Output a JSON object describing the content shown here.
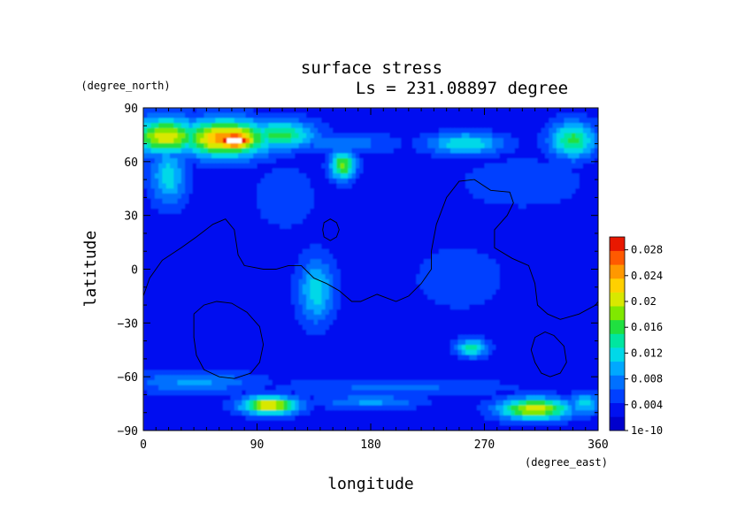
{
  "chart_data": {
    "type": "heatmap",
    "title": "surface stress",
    "subtitle": "Ls = 231.08897 degree",
    "xlabel": "longitude",
    "ylabel": "latitude",
    "x_units": "(degree_east)",
    "y_units": "(degree_north)",
    "xlim": [
      0,
      360
    ],
    "ylim": [
      -90,
      90
    ],
    "x_ticks": [
      "0",
      "90",
      "180",
      "270",
      "360"
    ],
    "y_ticks": [
      "90",
      "60",
      "30",
      "0",
      "−30",
      "−60",
      "−90"
    ],
    "colorbar": {
      "min": 0,
      "max": 0.03,
      "tick_values": [
        0,
        0.004,
        0.008,
        0.012,
        0.016,
        0.02,
        0.024,
        0.028
      ],
      "tick_labels": [
        "1e-10",
        "0.004",
        "0.008",
        "0.012",
        "0.016",
        "0.02",
        "0.024",
        "0.028"
      ],
      "colors": [
        "#0000cd",
        "#0011f0",
        "#0040ff",
        "#0070ff",
        "#00a8ff",
        "#00d8e8",
        "#00e6a0",
        "#20e040",
        "#80e800",
        "#d8e800",
        "#ffd000",
        "#ff9800",
        "#ff5a00",
        "#e81800"
      ]
    },
    "background_value": 0.003,
    "features": [
      {
        "name": "north-polar-band-west",
        "lon": 18,
        "lat": 74,
        "rlon": 28,
        "rlat": 10,
        "value": 0.021
      },
      {
        "name": "north-polar-band-center",
        "lon": 65,
        "lat": 73,
        "rlon": 35,
        "rlat": 10,
        "value": 0.025
      },
      {
        "name": "north-polar-band-east",
        "lon": 108,
        "lat": 75,
        "rlon": 28,
        "rlat": 8,
        "value": 0.016
      },
      {
        "name": "north-polar-max",
        "lon": 72,
        "lat": 72,
        "rlon": 18,
        "rlat": 5,
        "value": 0.034
      },
      {
        "name": "north-mid-lon20",
        "lon": 20,
        "lat": 52,
        "rlon": 14,
        "rlat": 16,
        "value": 0.012
      },
      {
        "name": "north-165",
        "lon": 158,
        "lat": 70,
        "rlon": 40,
        "rlat": 6,
        "value": 0.008
      },
      {
        "name": "north-260",
        "lon": 255,
        "lat": 70,
        "rlon": 30,
        "rlat": 6,
        "value": 0.013
      },
      {
        "name": "north-345",
        "lon": 340,
        "lat": 72,
        "rlon": 18,
        "rlat": 10,
        "value": 0.016
      },
      {
        "name": "north-patch-155",
        "lon": 158,
        "lat": 58,
        "rlon": 10,
        "rlat": 8,
        "value": 0.018
      },
      {
        "name": "north-cloud-110",
        "lon": 112,
        "lat": 40,
        "rlon": 25,
        "rlat": 18,
        "value": 0.006
      },
      {
        "name": "north-cloud-300",
        "lon": 300,
        "lat": 48,
        "rlon": 50,
        "rlat": 14,
        "value": 0.006
      },
      {
        "name": "tharsis-tongue",
        "lon": 137,
        "lat": -12,
        "rlon": 14,
        "rlat": 18,
        "value": 0.012
      },
      {
        "name": "equator-250",
        "lon": 250,
        "lat": -5,
        "rlon": 50,
        "rlat": 25,
        "value": 0.005
      },
      {
        "name": "south-patch-260",
        "lon": 260,
        "lat": -44,
        "rlon": 12,
        "rlat": 5,
        "value": 0.014
      },
      {
        "name": "south-band-west",
        "lon": 40,
        "lat": -63,
        "rlon": 50,
        "rlat": 6,
        "value": 0.009
      },
      {
        "name": "south-band-east",
        "lon": 200,
        "lat": -66,
        "rlon": 90,
        "rlat": 5,
        "value": 0.007
      },
      {
        "name": "south-low-95",
        "lon": 100,
        "lat": -76,
        "rlon": 22,
        "rlat": 5,
        "value": 0.022
      },
      {
        "name": "south-low-180",
        "lon": 180,
        "lat": -74,
        "rlon": 40,
        "rlat": 4,
        "value": 0.009
      },
      {
        "name": "south-low-310",
        "lon": 310,
        "lat": -78,
        "rlon": 28,
        "rlat": 6,
        "value": 0.021
      },
      {
        "name": "south-low-350",
        "lon": 350,
        "lat": -75,
        "rlon": 12,
        "rlat": 6,
        "value": 0.012
      }
    ],
    "topography_contours": [
      {
        "name": "dichotomy-west",
        "points": [
          [
            0,
            -15
          ],
          [
            5,
            -5
          ],
          [
            15,
            5
          ],
          [
            30,
            12
          ],
          [
            42,
            18
          ],
          [
            55,
            25
          ],
          [
            65,
            28
          ],
          [
            72,
            22
          ],
          [
            75,
            8
          ],
          [
            80,
            2
          ],
          [
            95,
            0
          ],
          [
            105,
            0
          ],
          [
            115,
            2
          ],
          [
            125,
            2
          ],
          [
            135,
            -5
          ],
          [
            145,
            -8
          ],
          [
            155,
            -12
          ],
          [
            165,
            -18
          ],
          [
            172,
            -18
          ],
          [
            185,
            -14
          ],
          [
            200,
            -18
          ],
          [
            210,
            -15
          ],
          [
            220,
            -8
          ],
          [
            228,
            0
          ],
          [
            228,
            10
          ],
          [
            232,
            25
          ],
          [
            240,
            40
          ],
          [
            250,
            49
          ],
          [
            262,
            50
          ],
          [
            275,
            44
          ],
          [
            290,
            43
          ],
          [
            293,
            37
          ],
          [
            288,
            30
          ],
          [
            278,
            22
          ],
          [
            278,
            12
          ],
          [
            292,
            6
          ],
          [
            305,
            2
          ],
          [
            310,
            -8
          ],
          [
            312,
            -20
          ],
          [
            320,
            -25
          ],
          [
            330,
            -28
          ],
          [
            345,
            -25
          ],
          [
            358,
            -20
          ],
          [
            360,
            -18
          ]
        ]
      },
      {
        "name": "hellas",
        "points": [
          [
            40,
            -25
          ],
          [
            48,
            -20
          ],
          [
            58,
            -18
          ],
          [
            70,
            -19
          ],
          [
            82,
            -24
          ],
          [
            92,
            -32
          ],
          [
            95,
            -42
          ],
          [
            92,
            -52
          ],
          [
            85,
            -58
          ],
          [
            72,
            -61
          ],
          [
            60,
            -60
          ],
          [
            48,
            -56
          ],
          [
            42,
            -48
          ],
          [
            40,
            -38
          ],
          [
            40,
            -25
          ]
        ]
      },
      {
        "name": "argyre",
        "points": [
          [
            310,
            -38
          ],
          [
            318,
            -35
          ],
          [
            325,
            -37
          ],
          [
            333,
            -43
          ],
          [
            335,
            -52
          ],
          [
            330,
            -58
          ],
          [
            322,
            -60
          ],
          [
            315,
            -58
          ],
          [
            310,
            -52
          ],
          [
            307,
            -45
          ],
          [
            310,
            -38
          ]
        ]
      },
      {
        "name": "olympus-mons",
        "points": [
          [
            143,
            18
          ],
          [
            148,
            16
          ],
          [
            153,
            18
          ],
          [
            155,
            22
          ],
          [
            153,
            26
          ],
          [
            148,
            28
          ],
          [
            143,
            26
          ],
          [
            142,
            22
          ],
          [
            143,
            18
          ]
        ]
      }
    ]
  }
}
